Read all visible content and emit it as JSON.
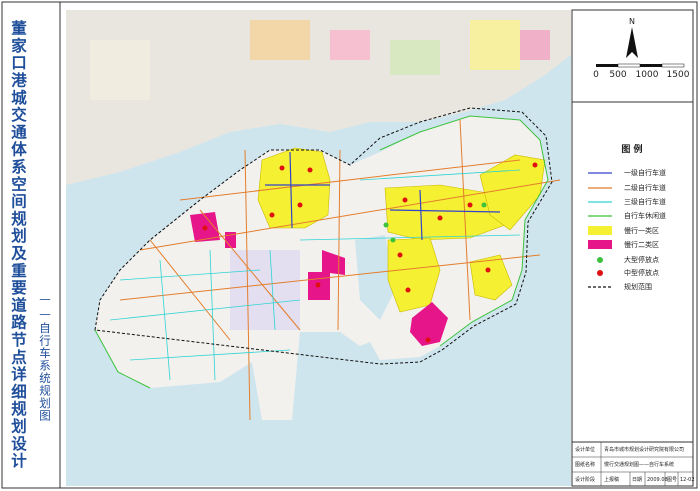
{
  "title": "董家口港城交通体系空间规划及重要道路节点详细规划设计",
  "subtitle": "——自行车系统规划图",
  "north": "N",
  "scale": {
    "labels": [
      "0",
      "500",
      "1000",
      "1500"
    ]
  },
  "legend": {
    "title": "图 例",
    "items": [
      {
        "label": "一级自行车道"
      },
      {
        "label": "二级自行车道"
      },
      {
        "label": "三级自行车道"
      },
      {
        "label": "自行车休闲道"
      },
      {
        "label": "慢行一类区"
      },
      {
        "label": "慢行二类区"
      },
      {
        "label": "大型停放点"
      },
      {
        "label": "中型停放点"
      },
      {
        "label": "规划范围"
      }
    ]
  },
  "title_block": {
    "rows": [
      [
        "设计单位",
        "青岛市城市规划设计研究院有限公司"
      ],
      [
        "图纸名称",
        "慢行交通规划图——自行车系统"
      ],
      [
        "设计阶段",
        "上报稿",
        "日期",
        "2009.08",
        "图号",
        "12-02"
      ]
    ]
  }
}
